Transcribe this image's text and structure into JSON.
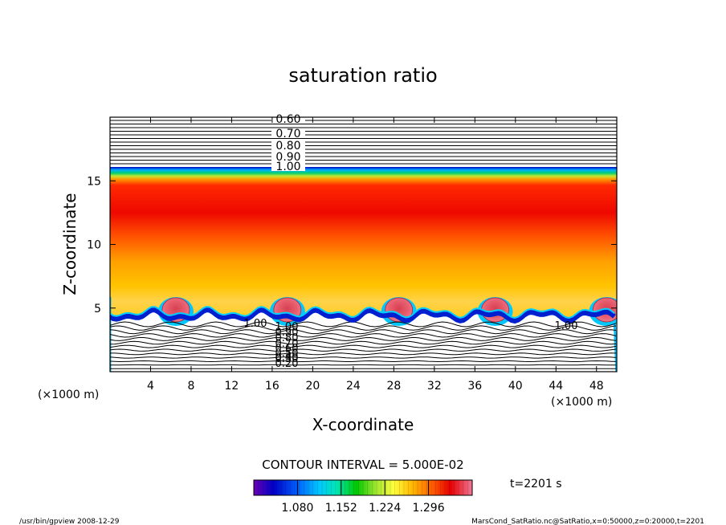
{
  "chart_data": {
    "type": "heatmap",
    "title": "saturation ratio",
    "xlabel": "X-coordinate",
    "ylabel": "Z-coordinate",
    "x_unit": "(×1000 m)",
    "y_unit": "(×1000 m)",
    "xlim": [
      0,
      50
    ],
    "ylim": [
      0,
      20
    ],
    "x_ticks": [
      4,
      8,
      12,
      16,
      20,
      24,
      28,
      32,
      36,
      40,
      44,
      48
    ],
    "y_ticks": [
      5,
      10,
      15
    ],
    "contour_interval_label": "CONTOUR INTERVAL = 5.000E-02",
    "time_label": "t=2201 s",
    "colorbar": {
      "ticks": [
        1.08,
        1.152,
        1.224,
        1.296
      ],
      "tick_labels": [
        "1.080",
        "1.152",
        "1.224",
        "1.296"
      ],
      "range": [
        1.008,
        1.368
      ]
    },
    "upper_contour_labels": [
      "0.60",
      "0.70",
      "0.80",
      "0.90",
      "1.00"
    ],
    "lower_contour_labels": [
      "1.00",
      "0.90",
      "0.80",
      "0.70",
      "0.60",
      "0.50",
      "0.40",
      "0.30",
      "0.20"
    ],
    "side_contour_labels": [
      "1.00",
      "1.00"
    ],
    "cloud_cells_x": [
      6.5,
      17.5,
      28.5,
      38,
      49
    ]
  },
  "footer": {
    "left": "/usr/bin/gpview   2008-12-29",
    "right": "MarsCond_SatRatio.nc@SatRatio,x=0:50000,z=0:20000,t=2201"
  },
  "colors": {
    "background": "#ffffff",
    "frame": "#000000",
    "colormap": [
      "#6a00b4",
      "#0000c8",
      "#0040ff",
      "#00c8ff",
      "#00e6b4",
      "#00c800",
      "#a0e632",
      "#ffff3c",
      "#ffb400",
      "#ff5a00",
      "#e60000",
      "#f07896"
    ]
  }
}
